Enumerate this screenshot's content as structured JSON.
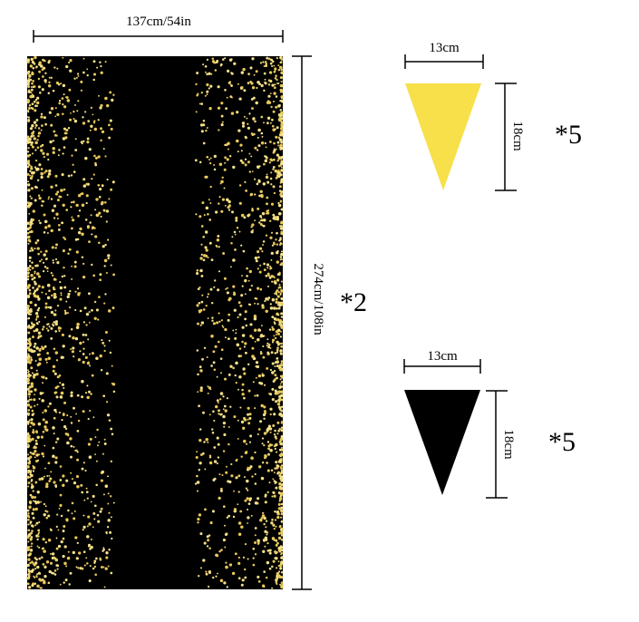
{
  "tablecloth": {
    "width_label": "137cm/54in",
    "length_label": "274cm/108in",
    "quantity": "*2"
  },
  "flags": [
    {
      "width_label": "13cm",
      "height_label": "18cm",
      "quantity": "*5"
    },
    {
      "width_label": "13cm",
      "height_label": "18cm",
      "quantity": "*5"
    }
  ]
}
